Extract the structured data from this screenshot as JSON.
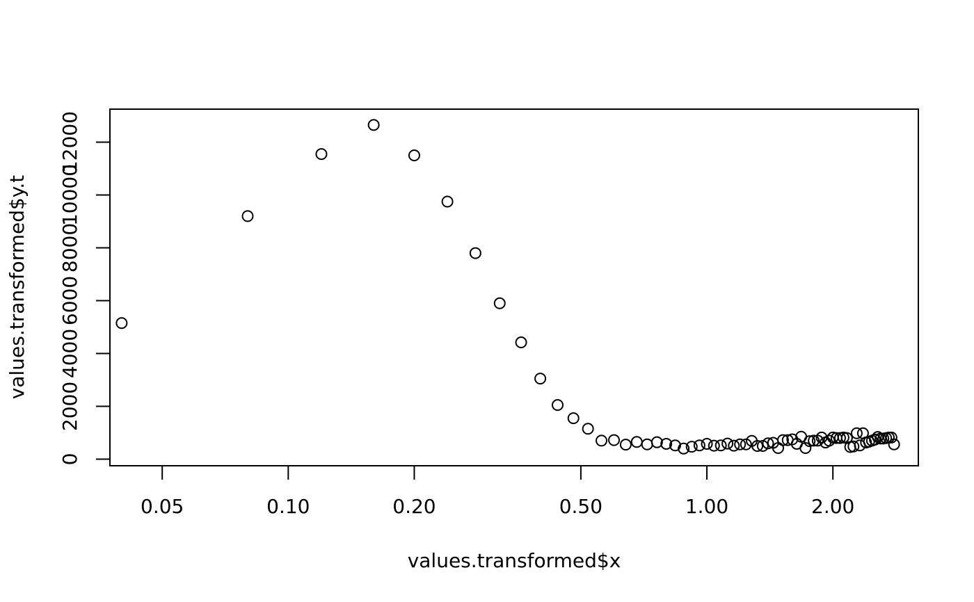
{
  "chart_data": {
    "type": "scatter",
    "xscale": "log",
    "xlabel": "values.transformed$x",
    "ylabel": "values.transformed$y.t",
    "xlim": [
      0.0375,
      3.2
    ],
    "ylim": [
      -250,
      13250
    ],
    "xticks": [
      0.05,
      0.1,
      0.2,
      0.5,
      1,
      2
    ],
    "xtick_labels": [
      "0.05",
      "0.10",
      "0.20",
      "0.50",
      "1.00",
      "2.00"
    ],
    "yticks": [
      0,
      2000,
      4000,
      6000,
      8000,
      10000,
      12000
    ],
    "ytick_labels": [
      "0",
      "2000",
      "4000",
      "6000",
      "8000",
      "10000",
      "12000"
    ],
    "grid": false,
    "legend": "none",
    "marker": "open-circle",
    "points": [
      [
        0.04,
        5150
      ],
      [
        0.08,
        9200
      ],
      [
        0.12,
        11550
      ],
      [
        0.16,
        12650
      ],
      [
        0.2,
        11500
      ],
      [
        0.24,
        9750
      ],
      [
        0.28,
        7800
      ],
      [
        0.32,
        5900
      ],
      [
        0.36,
        4420
      ],
      [
        0.4,
        3050
      ],
      [
        0.44,
        2050
      ],
      [
        0.48,
        1550
      ],
      [
        0.52,
        1150
      ],
      [
        0.56,
        700
      ],
      [
        0.6,
        720
      ],
      [
        0.64,
        550
      ],
      [
        0.68,
        650
      ],
      [
        0.72,
        560
      ],
      [
        0.76,
        640
      ],
      [
        0.8,
        580
      ],
      [
        0.84,
        520
      ],
      [
        0.88,
        400
      ],
      [
        0.92,
        470
      ],
      [
        0.96,
        520
      ],
      [
        1.0,
        580
      ],
      [
        1.04,
        510
      ],
      [
        1.08,
        520
      ],
      [
        1.12,
        590
      ],
      [
        1.16,
        510
      ],
      [
        1.2,
        560
      ],
      [
        1.24,
        560
      ],
      [
        1.28,
        690
      ],
      [
        1.32,
        500
      ],
      [
        1.36,
        500
      ],
      [
        1.4,
        600
      ],
      [
        1.44,
        620
      ],
      [
        1.48,
        420
      ],
      [
        1.52,
        720
      ],
      [
        1.56,
        720
      ],
      [
        1.6,
        750
      ],
      [
        1.64,
        580
      ],
      [
        1.68,
        850
      ],
      [
        1.72,
        420
      ],
      [
        1.76,
        680
      ],
      [
        1.8,
        700
      ],
      [
        1.84,
        700
      ],
      [
        1.88,
        820
      ],
      [
        1.92,
        630
      ],
      [
        1.96,
        700
      ],
      [
        2.0,
        820
      ],
      [
        2.04,
        800
      ],
      [
        2.08,
        800
      ],
      [
        2.12,
        820
      ],
      [
        2.16,
        800
      ],
      [
        2.2,
        460
      ],
      [
        2.24,
        480
      ],
      [
        2.28,
        980
      ],
      [
        2.32,
        520
      ],
      [
        2.36,
        980
      ],
      [
        2.4,
        630
      ],
      [
        2.44,
        660
      ],
      [
        2.48,
        700
      ],
      [
        2.52,
        740
      ],
      [
        2.56,
        840
      ],
      [
        2.6,
        780
      ],
      [
        2.64,
        780
      ],
      [
        2.68,
        800
      ],
      [
        2.72,
        820
      ],
      [
        2.76,
        820
      ],
      [
        2.8,
        560
      ]
    ]
  }
}
